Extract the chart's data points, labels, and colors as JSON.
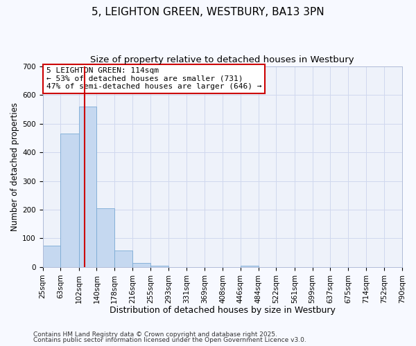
{
  "title": "5, LEIGHTON GREEN, WESTBURY, BA13 3PN",
  "subtitle": "Size of property relative to detached houses in Westbury",
  "xlabel": "Distribution of detached houses by size in Westbury",
  "ylabel": "Number of detached properties",
  "bin_edges": [
    25,
    63,
    102,
    140,
    178,
    216,
    255,
    293,
    331,
    369,
    408,
    446,
    484,
    522,
    561,
    599,
    637,
    675,
    714,
    752,
    790
  ],
  "bar_heights": [
    75,
    465,
    560,
    205,
    57,
    15,
    5,
    0,
    0,
    0,
    0,
    5,
    0,
    0,
    0,
    0,
    0,
    0,
    0,
    0
  ],
  "bar_color": "#c5d8f0",
  "bar_edge_color": "#7aaad4",
  "vline_x": 114,
  "vline_color": "#cc0000",
  "ylim": [
    0,
    700
  ],
  "yticks": [
    0,
    100,
    200,
    300,
    400,
    500,
    600,
    700
  ],
  "background_color": "#f7f9ff",
  "plot_bg_color": "#eef2fa",
  "grid_color": "#d0d8ee",
  "annotation_text": "5 LEIGHTON GREEN: 114sqm\n← 53% of detached houses are smaller (731)\n47% of semi-detached houses are larger (646) →",
  "annotation_box_color": "#ffffff",
  "annotation_border_color": "#cc0000",
  "footnote1": "Contains HM Land Registry data © Crown copyright and database right 2025.",
  "footnote2": "Contains public sector information licensed under the Open Government Licence v3.0.",
  "title_fontsize": 11,
  "subtitle_fontsize": 9.5,
  "tick_label_fontsize": 7.5,
  "xlabel_fontsize": 9,
  "ylabel_fontsize": 8.5,
  "annotation_fontsize": 8
}
